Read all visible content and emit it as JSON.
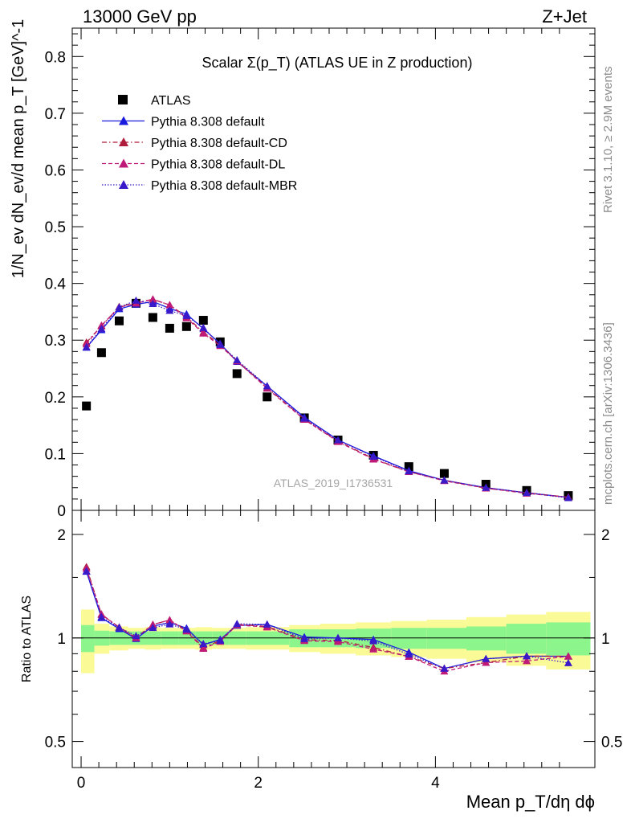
{
  "header": {
    "left": "13000 GeV pp",
    "right": "Z+Jet"
  },
  "side_labels": {
    "rivet": "Rivet 3.1.10, ≥ 2.9M events",
    "mcplots": "mcplots.cern.ch [arXiv:1306.3436]"
  },
  "watermark": "ATLAS_2019_I1736531",
  "colors": {
    "atlas": "#000000",
    "default": "#1a1adf",
    "cd": "#b01c3c",
    "dl": "#c01a78",
    "mbr": "#3a1ac8",
    "band1": "#8cf58c",
    "band2": "#fafa96"
  },
  "chart_data": {
    "type": "line",
    "title": "Scalar Σ(p_T) (ATLAS UE in Z production)",
    "xlabel": "Mean p_T/dη dϕ",
    "ylabel": "1/N_ev dN_ev/d mean p_T [GeV]^-1",
    "ratio_ylabel": "Ratio to ATLAS",
    "xlim": [
      -0.1,
      5.8
    ],
    "ylim": [
      0,
      0.85
    ],
    "ratio_ylim": [
      0.42,
      2.35
    ],
    "legend_position": "top-left",
    "x_ticks": [
      0,
      2,
      4
    ],
    "y_ticks": [
      0,
      0.1,
      0.2,
      0.3,
      0.4,
      0.5,
      0.6,
      0.7,
      0.8
    ],
    "ratio_ticks": [
      0.5,
      1,
      2
    ],
    "x": [
      0.06,
      0.23,
      0.43,
      0.62,
      0.81,
      1.0,
      1.19,
      1.38,
      1.57,
      1.76,
      2.1,
      2.52,
      2.9,
      3.3,
      3.7,
      4.1,
      4.57,
      5.03,
      5.5
    ],
    "series": [
      {
        "name": "ATLAS",
        "style": "marker",
        "values": [
          0.184,
          0.278,
          0.334,
          0.365,
          0.34,
          0.321,
          0.324,
          0.335,
          0.297,
          0.241,
          0.2,
          0.163,
          0.124,
          0.097,
          0.077,
          0.065,
          0.046,
          0.035,
          0.026
        ]
      },
      {
        "name": "Pythia 8.308 default",
        "style": "solid",
        "values": [
          0.287,
          0.318,
          0.355,
          0.363,
          0.368,
          0.356,
          0.346,
          0.32,
          0.294,
          0.262,
          0.219,
          0.164,
          0.124,
          0.096,
          0.07,
          0.053,
          0.04,
          0.031,
          0.023
        ]
      },
      {
        "name": "Pythia 8.308 default-CD",
        "style": "dashdot",
        "values": [
          0.296,
          0.325,
          0.359,
          0.366,
          0.372,
          0.362,
          0.341,
          0.314,
          0.292,
          0.264,
          0.216,
          0.161,
          0.122,
          0.091,
          0.068,
          0.053,
          0.039,
          0.031,
          0.023
        ]
      },
      {
        "name": "Pythia 8.308 default-DL",
        "style": "dashed",
        "values": [
          0.293,
          0.326,
          0.358,
          0.365,
          0.372,
          0.362,
          0.339,
          0.312,
          0.29,
          0.263,
          0.215,
          0.16,
          0.121,
          0.09,
          0.068,
          0.052,
          0.039,
          0.03,
          0.023
        ]
      },
      {
        "name": "Pythia 8.308 default-MBR",
        "style": "dotted",
        "values": [
          0.288,
          0.32,
          0.358,
          0.37,
          0.364,
          0.352,
          0.343,
          0.322,
          0.292,
          0.265,
          0.219,
          0.162,
          0.124,
          0.095,
          0.069,
          0.053,
          0.04,
          0.031,
          0.022
        ]
      }
    ],
    "uncertainty_bands": [
      {
        "x_edges": [
          0.0,
          0.15,
          0.32,
          0.53,
          0.72,
          0.9,
          1.1,
          1.29,
          1.48,
          1.67,
          1.86,
          2.35,
          2.7,
          3.1,
          3.5,
          3.9,
          4.35,
          4.8,
          5.25,
          5.75
        ],
        "inner_half": [
          0.09,
          0.05,
          0.045,
          0.045,
          0.045,
          0.045,
          0.045,
          0.045,
          0.045,
          0.045,
          0.045,
          0.06,
          0.06,
          0.065,
          0.07,
          0.07,
          0.08,
          0.1,
          0.11
        ],
        "outer_half": [
          0.21,
          0.1,
          0.08,
          0.07,
          0.075,
          0.07,
          0.07,
          0.075,
          0.07,
          0.07,
          0.075,
          0.09,
          0.1,
          0.11,
          0.12,
          0.13,
          0.15,
          0.17,
          0.19
        ]
      }
    ]
  }
}
